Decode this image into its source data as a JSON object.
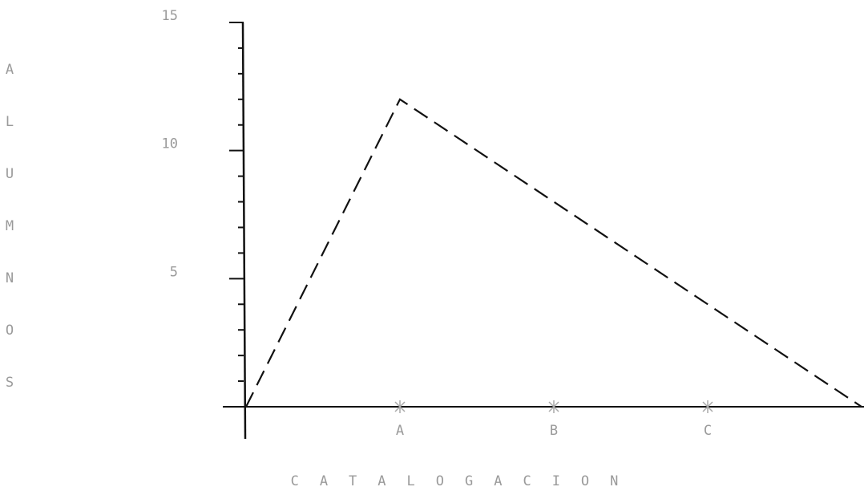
{
  "chart_data": {
    "type": "line",
    "y_label": "ALUMNOS",
    "x_label": "CATALOGACION",
    "categories": [
      null,
      "A",
      "B",
      "C",
      null
    ],
    "values": [
      0,
      12,
      8,
      4,
      0
    ],
    "color": "#111111",
    "ylim": [
      0,
      15
    ],
    "yticks": [
      5,
      10,
      15
    ],
    "yticks_minor": [
      1,
      2,
      3,
      4,
      6,
      7,
      8,
      9,
      11,
      12,
      13,
      14
    ],
    "line_style": "dashed"
  }
}
